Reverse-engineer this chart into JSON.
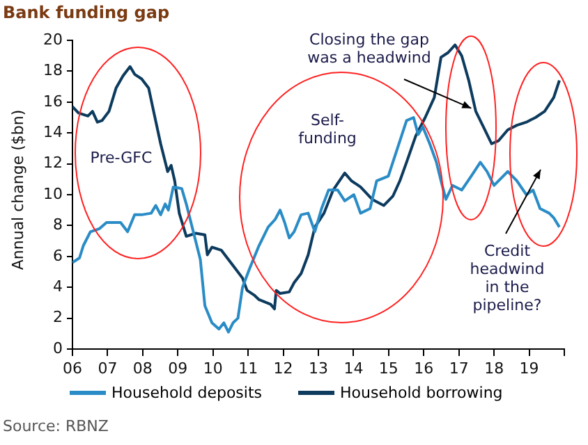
{
  "chart_data": {
    "type": "line",
    "title": "Bank funding gap",
    "ylabel": "Annual change ($bn)",
    "annotations": [
      "Pre-GFC",
      "Self-funding",
      {
        "text": "Closing the gap was a headwind",
        "x": 2017.35,
        "y": 15.6
      },
      "Credit headwind in the pipeline?",
      "Source: RBNZ"
    ],
    "xlim": [
      2006,
      2020
    ],
    "xticks": [
      {
        "value": 2006,
        "label": "06"
      },
      {
        "value": 2007,
        "label": "07"
      },
      {
        "value": 2008,
        "label": "08"
      },
      {
        "value": 2009,
        "label": "09"
      },
      {
        "value": 2010,
        "label": "10"
      },
      {
        "value": 2011,
        "label": "11"
      },
      {
        "value": 2012,
        "label": "12"
      },
      {
        "value": 2013,
        "label": "13"
      },
      {
        "value": 2014,
        "label": "14"
      },
      {
        "value": 2015,
        "label": "15"
      },
      {
        "value": 2016,
        "label": "16"
      },
      {
        "value": 2017,
        "label": "17"
      },
      {
        "value": 2018,
        "label": "18"
      },
      {
        "value": 2019,
        "label": "19"
      },
      {
        "value": 2020,
        "label": null
      }
    ],
    "ylim": [
      0,
      20
    ],
    "yticks": [
      0,
      2,
      4,
      6,
      8,
      10,
      12,
      14,
      16,
      18,
      20
    ],
    "grid": false,
    "legend": "bottom",
    "marker": "none",
    "line_style": "solid",
    "series": [
      {
        "name": "Household deposits",
        "color": "#2a8cc6",
        "x": [
          2006.0,
          2006.2,
          2006.31,
          2006.51,
          2006.77,
          2006.97,
          2007.17,
          2007.37,
          2007.57,
          2007.77,
          2007.97,
          2008.24,
          2008.37,
          2008.51,
          2008.64,
          2008.73,
          2008.87,
          2009.11,
          2009.24,
          2009.44,
          2009.64,
          2009.77,
          2009.97,
          2010.17,
          2010.31,
          2010.44,
          2010.57,
          2010.71,
          2010.84,
          2011.04,
          2011.31,
          2011.57,
          2011.77,
          2011.91,
          2012.04,
          2012.17,
          2012.31,
          2012.51,
          2012.71,
          2012.9,
          2013.09,
          2013.29,
          2013.55,
          2013.75,
          2014.01,
          2014.2,
          2014.47,
          2014.66,
          2014.99,
          2015.25,
          2015.51,
          2015.71,
          2015.84,
          2015.97,
          2016.17,
          2016.36,
          2016.49,
          2016.63,
          2016.82,
          2017.08,
          2017.35,
          2017.61,
          2017.8,
          2018.0,
          2018.26,
          2018.39,
          2018.65,
          2018.92,
          2019.11,
          2019.31,
          2019.57,
          2019.7,
          2019.86
        ],
        "values": [
          5.6,
          5.9,
          6.7,
          7.6,
          7.8,
          8.2,
          8.2,
          8.2,
          7.6,
          8.7,
          8.7,
          8.8,
          9.3,
          8.7,
          9.4,
          9.0,
          10.5,
          10.4,
          9.4,
          7.6,
          5.8,
          2.8,
          1.7,
          1.3,
          1.7,
          1.1,
          1.7,
          2.0,
          4.0,
          5.2,
          6.7,
          7.9,
          8.4,
          9.0,
          8.2,
          7.2,
          7.6,
          8.7,
          8.8,
          7.6,
          9.1,
          10.3,
          10.3,
          9.6,
          10.0,
          8.8,
          9.1,
          10.9,
          11.2,
          13.0,
          14.8,
          15.0,
          13.9,
          14.4,
          13.3,
          12.1,
          10.9,
          9.7,
          10.6,
          10.3,
          11.2,
          12.1,
          11.5,
          10.6,
          11.2,
          11.5,
          10.9,
          10.0,
          10.3,
          9.1,
          8.8,
          8.5,
          7.9
        ]
      },
      {
        "name": "Household borrowing",
        "color": "#0d3b5e",
        "x": [
          2006.0,
          2006.17,
          2006.44,
          2006.57,
          2006.71,
          2006.84,
          2007.04,
          2007.24,
          2007.44,
          2007.64,
          2007.77,
          2007.97,
          2008.17,
          2008.31,
          2008.51,
          2008.71,
          2008.81,
          2008.91,
          2009.04,
          2009.24,
          2009.51,
          2009.77,
          2009.84,
          2009.97,
          2010.24,
          2010.44,
          2010.64,
          2010.84,
          2010.97,
          2011.17,
          2011.31,
          2011.64,
          2011.75,
          2011.8,
          2011.91,
          2012.17,
          2012.31,
          2012.51,
          2012.71,
          2012.9,
          2013.16,
          2013.42,
          2013.75,
          2013.94,
          2014.2,
          2014.53,
          2014.86,
          2015.12,
          2015.32,
          2015.51,
          2015.77,
          2016.04,
          2016.3,
          2016.49,
          2016.69,
          2016.89,
          2017.08,
          2017.28,
          2017.48,
          2017.74,
          2017.93,
          2018.13,
          2018.39,
          2018.65,
          2018.92,
          2019.18,
          2019.44,
          2019.7,
          2019.86
        ],
        "values": [
          15.7,
          15.3,
          15.1,
          15.4,
          14.7,
          14.8,
          15.4,
          16.9,
          17.7,
          18.3,
          17.8,
          17.5,
          16.9,
          15.4,
          13.3,
          11.5,
          11.9,
          10.9,
          8.8,
          7.3,
          7.5,
          7.4,
          6.1,
          6.6,
          6.4,
          5.8,
          5.2,
          4.6,
          3.8,
          3.5,
          3.2,
          2.9,
          2.6,
          3.8,
          3.6,
          3.7,
          4.3,
          4.9,
          6.1,
          7.9,
          8.8,
          10.3,
          11.4,
          10.9,
          10.5,
          9.7,
          9.3,
          9.9,
          10.9,
          12.1,
          13.8,
          15.0,
          16.3,
          18.9,
          19.2,
          19.7,
          19.0,
          17.4,
          15.4,
          14.2,
          13.3,
          13.5,
          14.2,
          14.5,
          14.7,
          15.0,
          15.4,
          16.3,
          17.4
        ]
      }
    ]
  }
}
